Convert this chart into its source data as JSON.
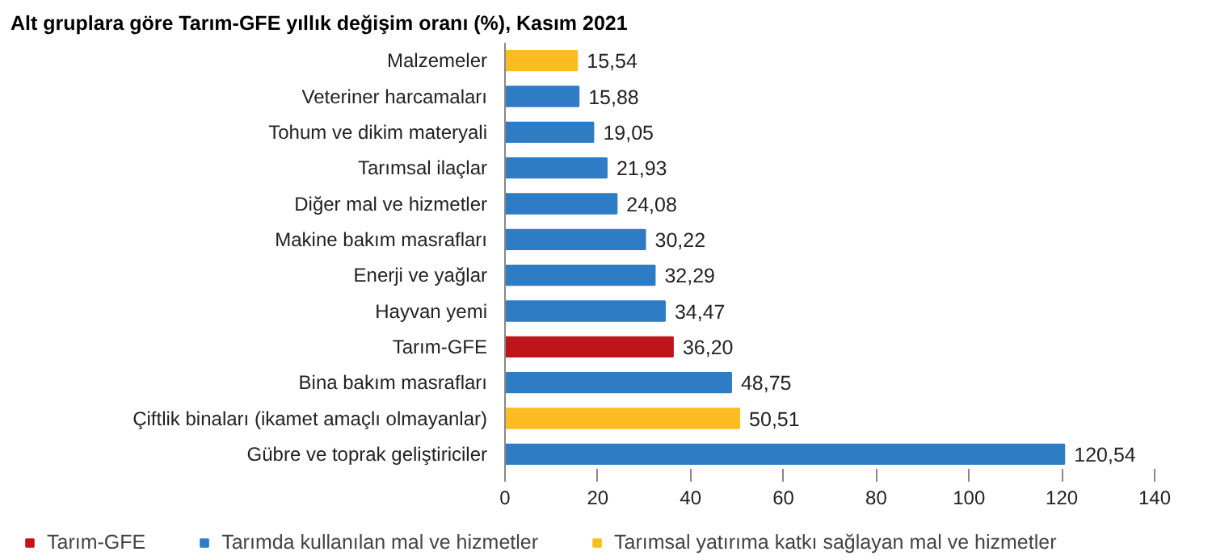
{
  "chart_data": {
    "type": "bar",
    "orientation": "horizontal",
    "title": "Alt gruplara göre Tarım-GFE yıllık değişim oranı (%), Kasım 2021",
    "categories": [
      "Malzemeler",
      "Veteriner harcamaları",
      "Tohum ve dikim materyali",
      "Tarımsal ilaçlar",
      "Diğer mal ve hizmetler",
      "Makine bakım masrafları",
      "Enerji ve yağlar",
      "Hayvan yemi",
      "Tarım-GFE",
      "Bina bakım masrafları",
      "Çiftlik binaları (ikamet amaçlı olmayanlar)",
      "Gübre ve toprak geliştiriciler"
    ],
    "series": [
      {
        "name": "Tarım-GFE",
        "color": "#c0141c",
        "values": [
          null,
          null,
          null,
          null,
          null,
          null,
          null,
          null,
          36.2,
          null,
          null,
          null
        ],
        "value_labels": [
          null,
          null,
          null,
          null,
          null,
          null,
          null,
          null,
          "36,20",
          null,
          null,
          null
        ]
      },
      {
        "name": "Tarımda kullanılan mal ve hizmetler",
        "color": "#2e7cc4",
        "values": [
          null,
          15.88,
          19.05,
          21.93,
          24.08,
          30.22,
          32.29,
          34.47,
          null,
          48.75,
          null,
          120.54
        ],
        "value_labels": [
          null,
          "15,88",
          "19,05",
          "21,93",
          "24,08",
          "30,22",
          "32,29",
          "34,47",
          null,
          "48,75",
          null,
          "120,54"
        ]
      },
      {
        "name": "Tarımsal yatırıma katkı sağlayan mal ve hizmetler",
        "color": "#fbbd22",
        "values": [
          15.54,
          null,
          null,
          null,
          null,
          null,
          null,
          null,
          null,
          null,
          50.51,
          null
        ],
        "value_labels": [
          "15,54",
          null,
          null,
          null,
          null,
          null,
          null,
          null,
          null,
          null,
          "50,51",
          null
        ]
      }
    ],
    "xlim": [
      0,
      140
    ],
    "xticks": [
      0,
      20,
      40,
      60,
      80,
      100,
      120,
      140
    ],
    "grid": false,
    "legend": "bottom"
  }
}
